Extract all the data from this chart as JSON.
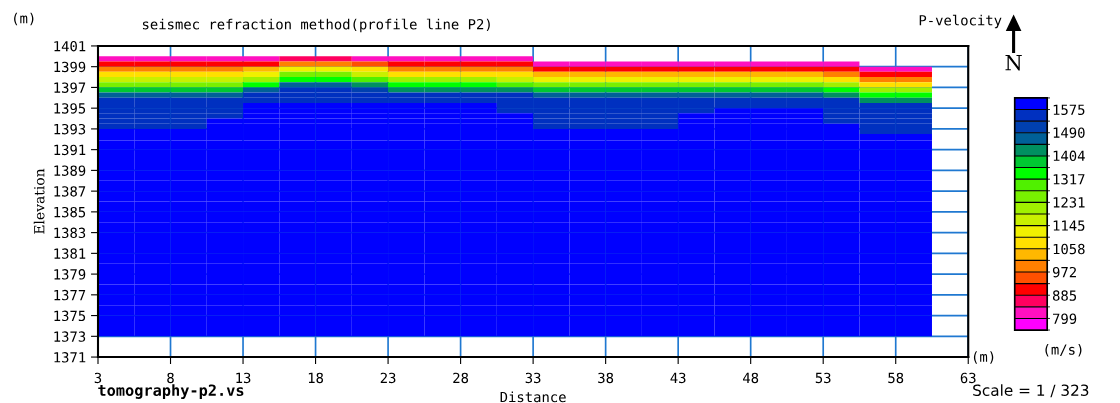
{
  "chart_data": {
    "type": "heatmap",
    "title": "seismec refraction method(profile line P2)",
    "xlabel": "Distance",
    "ylabel": "Elevation",
    "clabel": "(m/s)",
    "annotations": [
      "P-velocity",
      "(m)",
      "(m)",
      "N",
      "tomography-p2.vs",
      "Scale = 1 / 323"
    ],
    "x": [
      4.25,
      6.75,
      9.25,
      11.75,
      14.25,
      16.75,
      19.25,
      21.75,
      24.25,
      26.75,
      29.25,
      31.75,
      34.25,
      36.75,
      39.25,
      41.75,
      44.25,
      46.75,
      49.25,
      51.75,
      54.25,
      56.75,
      59.25
    ],
    "y": [
      1399.75,
      1399.25,
      1398.75,
      1398.25,
      1397.75,
      1397.25,
      1396.75,
      1396.25,
      1395.75,
      1395.25,
      1394.75,
      1394.25,
      1393.75,
      1393.25,
      1392.75,
      1392.25,
      1391.5,
      1390.5,
      1389.5,
      1388.5,
      1387.5,
      1386.5,
      1385.5,
      1384.5,
      1383.5,
      1382.5,
      1381.5,
      1380.5,
      1379.5,
      1378.5,
      1377.5,
      1376.5,
      1375.5,
      1374.5,
      1373.5
    ],
    "cells": [
      [
        820,
        820,
        820,
        820,
        820,
        864,
        864,
        820,
        820,
        820,
        820,
        820,
        null,
        null,
        null,
        null,
        null,
        null,
        null,
        null,
        null,
        null,
        null
      ],
      [
        907,
        907,
        907,
        907,
        907,
        994,
        994,
        950,
        907,
        907,
        907,
        907,
        820,
        820,
        820,
        820,
        820,
        820,
        820,
        820,
        820,
        null,
        null
      ],
      [
        994,
        994,
        994,
        994,
        1037,
        1123,
        1123,
        1080,
        994,
        994,
        994,
        994,
        907,
        907,
        907,
        907,
        907,
        907,
        907,
        907,
        907,
        820,
        820
      ],
      [
        1080,
        1080,
        1080,
        1080,
        1123,
        1253,
        1253,
        1166,
        1080,
        1080,
        1080,
        1080,
        1037,
        1037,
        1037,
        1037,
        1037,
        1037,
        1037,
        1037,
        994,
        907,
        907
      ],
      [
        1166,
        1166,
        1166,
        1166,
        1210,
        1339,
        1339,
        1296,
        1210,
        1210,
        1210,
        1166,
        1123,
        1123,
        1123,
        1123,
        1123,
        1123,
        1123,
        1123,
        1080,
        994,
        994
      ],
      [
        1253,
        1253,
        1253,
        1253,
        1339,
        1469,
        1469,
        1426,
        1339,
        1339,
        1339,
        1296,
        1253,
        1253,
        1253,
        1253,
        1253,
        1253,
        1253,
        1253,
        1210,
        1080,
        1080
      ],
      [
        1382,
        1382,
        1382,
        1382,
        1469,
        1554,
        1554,
        1511,
        1426,
        1426,
        1426,
        1426,
        1382,
        1382,
        1382,
        1382,
        1382,
        1382,
        1382,
        1382,
        1339,
        1210,
        1210
      ],
      [
        1469,
        1469,
        1469,
        1469,
        1554,
        1554,
        1554,
        1554,
        1554,
        1554,
        1554,
        1554,
        1469,
        1469,
        1469,
        1469,
        1469,
        1469,
        1469,
        1469,
        1426,
        1339,
        1339
      ],
      [
        1554,
        1554,
        1554,
        1554,
        1554,
        1554,
        1554,
        1554,
        1554,
        1554,
        1554,
        1554,
        1554,
        1554,
        1554,
        1554,
        1554,
        1554,
        1554,
        1554,
        1554,
        1426,
        1426
      ],
      [
        1554,
        1554,
        1554,
        1554,
        1600,
        1600,
        1600,
        1600,
        1600,
        1600,
        1600,
        1554,
        1554,
        1554,
        1554,
        1554,
        1554,
        1554,
        1554,
        1554,
        1554,
        1554,
        1554
      ],
      [
        1554,
        1554,
        1554,
        1554,
        1600,
        1600,
        1600,
        1600,
        1600,
        1600,
        1600,
        1554,
        1554,
        1554,
        1554,
        1554,
        1554,
        1600,
        1600,
        1600,
        1554,
        1554,
        1554
      ],
      [
        1554,
        1554,
        1554,
        1554,
        1600,
        1600,
        1600,
        1600,
        1600,
        1600,
        1600,
        1600,
        1554,
        1554,
        1554,
        1554,
        1600,
        1600,
        1600,
        1600,
        1554,
        1554,
        1554
      ],
      [
        1554,
        1554,
        1554,
        1600,
        1600,
        1600,
        1600,
        1600,
        1600,
        1600,
        1600,
        1600,
        1554,
        1554,
        1554,
        1554,
        1600,
        1600,
        1600,
        1600,
        1554,
        1554,
        1554
      ],
      [
        1554,
        1554,
        1554,
        1600,
        1600,
        1600,
        1600,
        1600,
        1600,
        1600,
        1600,
        1600,
        1554,
        1554,
        1554,
        1554,
        1600,
        1600,
        1600,
        1600,
        1600,
        1554,
        1554
      ],
      [
        1600,
        1600,
        1600,
        1600,
        1600,
        1600,
        1600,
        1600,
        1600,
        1600,
        1600,
        1600,
        1600,
        1600,
        1600,
        1600,
        1600,
        1600,
        1600,
        1600,
        1600,
        1554,
        1554
      ],
      [
        1600,
        1600,
        1600,
        1600,
        1600,
        1600,
        1600,
        1600,
        1600,
        1600,
        1600,
        1600,
        1600,
        1600,
        1600,
        1600,
        1600,
        1600,
        1600,
        1600,
        1600,
        1600,
        1600
      ],
      [
        1600,
        1600,
        1600,
        1600,
        1600,
        1600,
        1600,
        1600,
        1600,
        1600,
        1600,
        1600,
        1600,
        1600,
        1600,
        1600,
        1600,
        1600,
        1600,
        1600,
        1600,
        1600,
        1600
      ],
      [
        1600,
        1600,
        1600,
        1600,
        1600,
        1600,
        1600,
        1600,
        1600,
        1600,
        1600,
        1600,
        1600,
        1600,
        1600,
        1600,
        1600,
        1600,
        1600,
        1600,
        1600,
        1600,
        1600
      ],
      [
        1600,
        1600,
        1600,
        1600,
        1600,
        1600,
        1600,
        1600,
        1600,
        1600,
        1600,
        1600,
        1600,
        1600,
        1600,
        1600,
        1600,
        1600,
        1600,
        1600,
        1600,
        1600,
        1600
      ],
      [
        1600,
        1600,
        1600,
        1600,
        1600,
        1600,
        1600,
        1600,
        1600,
        1600,
        1600,
        1600,
        1600,
        1600,
        1600,
        1600,
        1600,
        1600,
        1600,
        1600,
        1600,
        1600,
        1600
      ],
      [
        1600,
        1600,
        1600,
        1600,
        1600,
        1600,
        1600,
        1600,
        1600,
        1600,
        1600,
        1600,
        1600,
        1600,
        1600,
        1600,
        1600,
        1600,
        1600,
        1600,
        1600,
        1600,
        1600
      ],
      [
        1600,
        1600,
        1600,
        1600,
        1600,
        1600,
        1600,
        1600,
        1600,
        1600,
        1600,
        1600,
        1600,
        1600,
        1600,
        1600,
        1600,
        1600,
        1600,
        1600,
        1600,
        1600,
        1600
      ],
      [
        1600,
        1600,
        1600,
        1600,
        1600,
        1600,
        1600,
        1600,
        1600,
        1600,
        1600,
        1600,
        1600,
        1600,
        1600,
        1600,
        1600,
        1600,
        1600,
        1600,
        1600,
        1600,
        1600
      ],
      [
        1600,
        1600,
        1600,
        1600,
        1600,
        1600,
        1600,
        1600,
        1600,
        1600,
        1600,
        1600,
        1600,
        1600,
        1600,
        1600,
        1600,
        1600,
        1600,
        1600,
        1600,
        1600,
        1600
      ],
      [
        1600,
        1600,
        1600,
        1600,
        1600,
        1600,
        1600,
        1600,
        1600,
        1600,
        1600,
        1600,
        1600,
        1600,
        1600,
        1600,
        1600,
        1600,
        1600,
        1600,
        1600,
        1600,
        1600
      ],
      [
        1600,
        1600,
        1600,
        1600,
        1600,
        1600,
        1600,
        1600,
        1600,
        1600,
        1600,
        1600,
        1600,
        1600,
        1600,
        1600,
        1600,
        1600,
        1600,
        1600,
        1600,
        1600,
        1600
      ],
      [
        1600,
        1600,
        1600,
        1600,
        1600,
        1600,
        1600,
        1600,
        1600,
        1600,
        1600,
        1600,
        1600,
        1600,
        1600,
        1600,
        1600,
        1600,
        1600,
        1600,
        1600,
        1600,
        1600
      ],
      [
        1600,
        1600,
        1600,
        1600,
        1600,
        1600,
        1600,
        1600,
        1600,
        1600,
        1600,
        1600,
        1600,
        1600,
        1600,
        1600,
        1600,
        1600,
        1600,
        1600,
        1600,
        1600,
        1600
      ],
      [
        1600,
        1600,
        1600,
        1600,
        1600,
        1600,
        1600,
        1600,
        1600,
        1600,
        1600,
        1600,
        1600,
        1600,
        1600,
        1600,
        1600,
        1600,
        1600,
        1600,
        1600,
        1600,
        1600
      ],
      [
        1600,
        1600,
        1600,
        1600,
        1600,
        1600,
        1600,
        1600,
        1600,
        1600,
        1600,
        1600,
        1600,
        1600,
        1600,
        1600,
        1600,
        1600,
        1600,
        1600,
        1600,
        1600,
        1600
      ],
      [
        1600,
        1600,
        1600,
        1600,
        1600,
        1600,
        1600,
        1600,
        1600,
        1600,
        1600,
        1600,
        1600,
        1600,
        1600,
        1600,
        1600,
        1600,
        1600,
        1600,
        1600,
        1600,
        1600
      ],
      [
        1600,
        1600,
        1600,
        1600,
        1600,
        1600,
        1600,
        1600,
        1600,
        1600,
        1600,
        1600,
        1600,
        1600,
        1600,
        1600,
        1600,
        1600,
        1600,
        1600,
        1600,
        1600,
        1600
      ],
      [
        1600,
        1600,
        1600,
        1600,
        1600,
        1600,
        1600,
        1600,
        1600,
        1600,
        1600,
        1600,
        1600,
        1600,
        1600,
        1600,
        1600,
        1600,
        1600,
        1600,
        1600,
        1600,
        1600
      ],
      [
        1600,
        1600,
        1600,
        1600,
        1600,
        1600,
        1600,
        1600,
        1600,
        1600,
        1600,
        1600,
        1600,
        1600,
        1600,
        1600,
        1600,
        1600,
        1600,
        1600,
        1600,
        1600,
        1600
      ],
      [
        1600,
        1600,
        1600,
        1600,
        1600,
        1600,
        1600,
        1600,
        1600,
        1600,
        1600,
        1600,
        1600,
        1600,
        1600,
        1600,
        1600,
        1600,
        1600,
        1600,
        1600,
        1600,
        1600
      ]
    ],
    "colors": [
      "#ff00ff",
      "#ff10c0",
      "#ff0060",
      "#ff0000",
      "#ff5000",
      "#ff8000",
      "#ffb800",
      "#ffe000",
      "#f0f000",
      "#c8f000",
      "#a0f000",
      "#78f000",
      "#50f000",
      "#00ff00",
      "#00c832",
      "#009060",
      "#006098",
      "#0040b0",
      "#0030c0",
      "#0000ff"
    ],
    "clim": [
      756,
      1618
    ],
    "cticks": [
      799,
      885,
      972,
      1058,
      1145,
      1231,
      1317,
      1404,
      1490,
      1575
    ],
    "xlim": [
      3,
      63
    ],
    "xticks": [
      3,
      8,
      13,
      18,
      23,
      28,
      33,
      38,
      43,
      48,
      53,
      58,
      63
    ],
    "ylim": [
      1371,
      1401
    ],
    "yticks": [
      1371,
      1373,
      1375,
      1377,
      1379,
      1381,
      1383,
      1385,
      1387,
      1389,
      1391,
      1393,
      1395,
      1397,
      1399,
      1401
    ],
    "grid": true
  }
}
